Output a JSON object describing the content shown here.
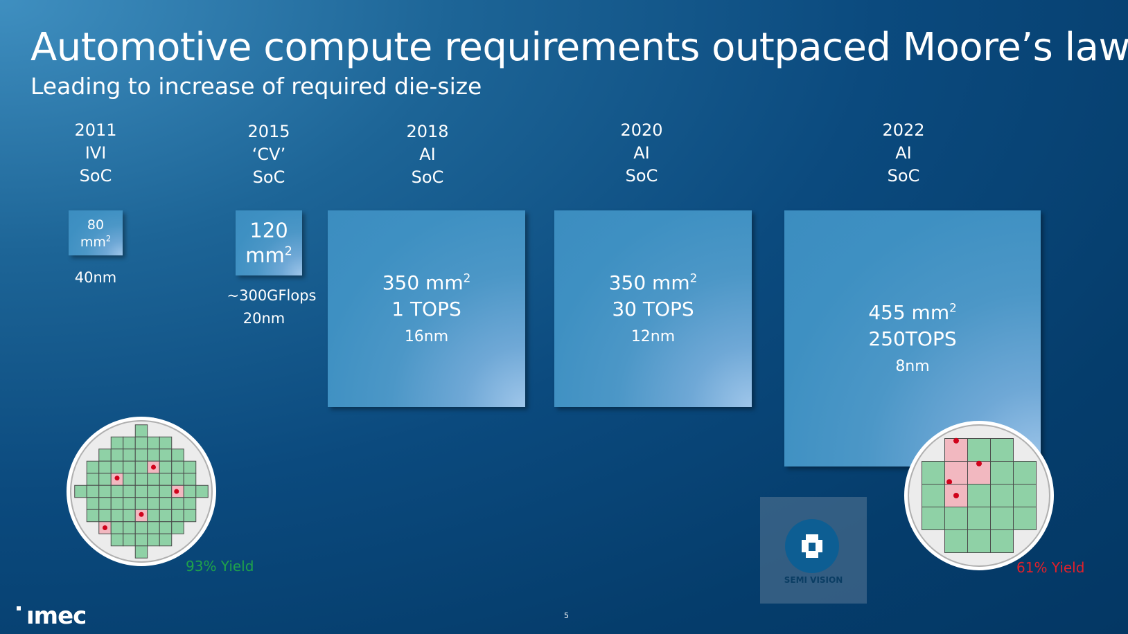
{
  "slide": {
    "title": "Automotive compute requirements outpaced Moore’s law",
    "subtitle": "Leading to increase of required die-size",
    "page_number": "5",
    "logo": "ımec",
    "watermark": "SEMI VISION"
  },
  "generations": [
    {
      "year": "2011",
      "type": "IVI",
      "kind": "SoC"
    },
    {
      "year": "2015",
      "type": "‘CV’",
      "kind": "SoC"
    },
    {
      "year": "2018",
      "type": "AI",
      "kind": "SoC"
    },
    {
      "year": "2020",
      "type": "AI",
      "kind": "SoC"
    },
    {
      "year": "2022",
      "type": "AI",
      "kind": "SoC"
    }
  ],
  "dies": [
    {
      "area": "80",
      "unit": "mm",
      "performance": "",
      "node": "40nm"
    },
    {
      "area": "120",
      "unit": "mm",
      "performance": "~300GFlops",
      "node": "20nm"
    },
    {
      "area": "350 mm",
      "performance": "1 TOPS",
      "node": "16nm"
    },
    {
      "area": "350 mm",
      "performance": "30 TOPS",
      "node": "12nm"
    },
    {
      "area": "455 mm",
      "performance": "250TOPS",
      "node": "8nm"
    }
  ],
  "superscript": "2",
  "wafers": [
    {
      "yield_label": "93% Yield",
      "yield_color": "#1fa34a"
    },
    {
      "yield_label": "61% Yield",
      "yield_color": "#e3202a"
    }
  ],
  "colors": {
    "good_die": "#8fd1a6",
    "defect_die": "#f2b8c0",
    "defect_dot": "#d0021b",
    "wafer_fill": "#ececec"
  }
}
